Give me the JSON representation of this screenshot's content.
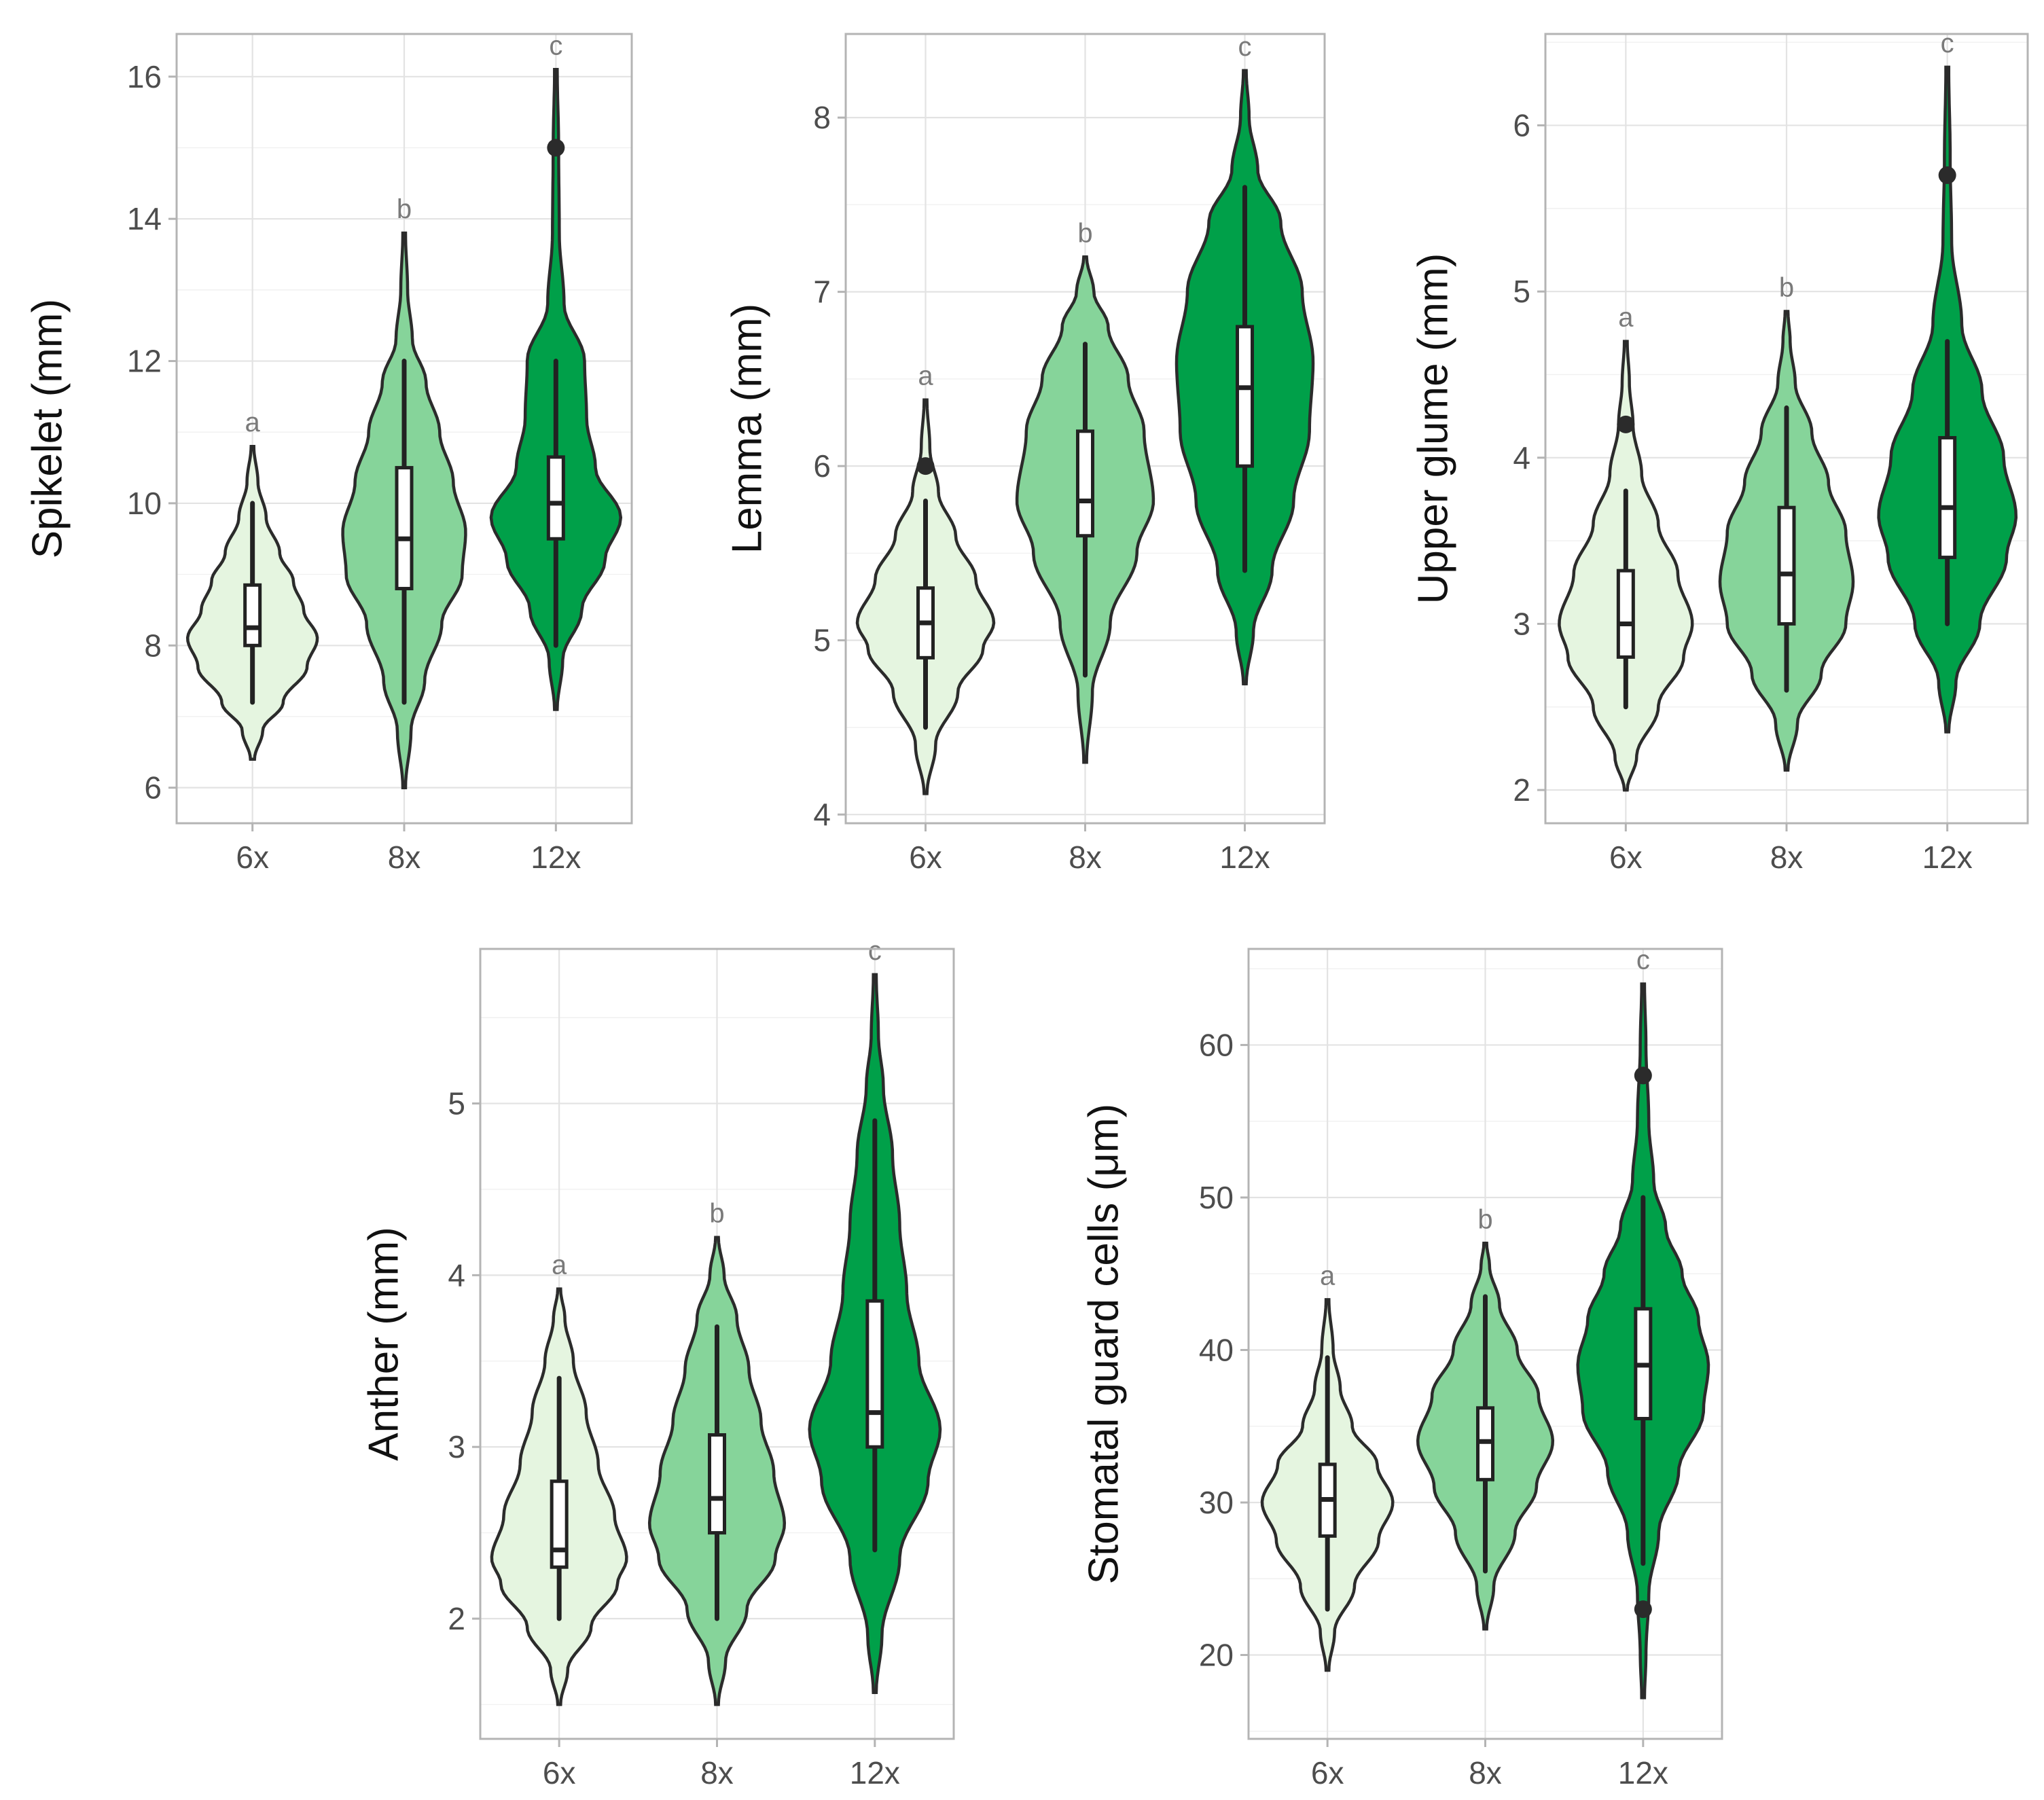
{
  "chart_data": [
    {
      "type": "violin",
      "ylabel": "Spikelet (mm)",
      "categories": [
        "6x",
        "8x",
        "12x"
      ],
      "ylim": [
        5.5,
        16.6
      ],
      "yticks": [
        6,
        8,
        10,
        12,
        14,
        16
      ],
      "series": [
        {
          "name": "6x",
          "color": "#e5f5e0",
          "min": 6.4,
          "max": 10.8,
          "density": [
            [
              6.4,
              0.03
            ],
            [
              6.8,
              0.15
            ],
            [
              7.2,
              0.45
            ],
            [
              7.7,
              0.8
            ],
            [
              8.1,
              0.95
            ],
            [
              8.5,
              0.75
            ],
            [
              8.9,
              0.6
            ],
            [
              9.3,
              0.4
            ],
            [
              9.8,
              0.2
            ],
            [
              10.3,
              0.08
            ],
            [
              10.8,
              0.02
            ]
          ],
          "whisker": [
            7.2,
            10.0
          ],
          "q1": 8.0,
          "median": 8.25,
          "q3": 8.85,
          "outliers": [],
          "sig": "a"
        },
        {
          "name": "8x",
          "color": "#86d49a",
          "min": 6.0,
          "max": 13.8,
          "density": [
            [
              6.0,
              0.02
            ],
            [
              6.8,
              0.1
            ],
            [
              7.5,
              0.3
            ],
            [
              8.3,
              0.55
            ],
            [
              9.0,
              0.85
            ],
            [
              9.6,
              0.9
            ],
            [
              10.3,
              0.72
            ],
            [
              11.0,
              0.52
            ],
            [
              11.7,
              0.32
            ],
            [
              12.3,
              0.12
            ],
            [
              13.0,
              0.05
            ],
            [
              13.8,
              0.02
            ]
          ],
          "whisker": [
            7.2,
            12.0
          ],
          "q1": 8.8,
          "median": 9.5,
          "q3": 10.5,
          "outliers": [],
          "sig": "b"
        },
        {
          "name": "12x",
          "color": "#00a049",
          "min": 7.1,
          "max": 16.1,
          "density": [
            [
              7.1,
              0.02
            ],
            [
              7.8,
              0.1
            ],
            [
              8.5,
              0.38
            ],
            [
              9.2,
              0.72
            ],
            [
              9.8,
              0.95
            ],
            [
              10.5,
              0.58
            ],
            [
              11.2,
              0.45
            ],
            [
              12.0,
              0.42
            ],
            [
              12.8,
              0.12
            ],
            [
              13.8,
              0.05
            ],
            [
              15.0,
              0.04
            ],
            [
              16.1,
              0.02
            ]
          ],
          "whisker": [
            8.0,
            12.0
          ],
          "q1": 9.5,
          "median": 10.0,
          "q3": 10.65,
          "outliers": [
            15.0
          ],
          "sig": "c"
        }
      ]
    },
    {
      "type": "violin",
      "ylabel": "Lemma (mm)",
      "categories": [
        "6x",
        "8x",
        "12x"
      ],
      "ylim": [
        3.95,
        8.48
      ],
      "yticks": [
        4,
        5,
        6,
        7,
        8
      ],
      "series": [
        {
          "name": "6x",
          "color": "#e5f5e0",
          "min": 4.12,
          "max": 6.38,
          "density": [
            [
              4.12,
              0.02
            ],
            [
              4.4,
              0.14
            ],
            [
              4.7,
              0.45
            ],
            [
              4.95,
              0.8
            ],
            [
              5.1,
              0.95
            ],
            [
              5.35,
              0.7
            ],
            [
              5.6,
              0.42
            ],
            [
              5.85,
              0.18
            ],
            [
              6.1,
              0.06
            ],
            [
              6.38,
              0.02
            ]
          ],
          "whisker": [
            4.5,
            5.8
          ],
          "q1": 4.9,
          "median": 5.1,
          "q3": 5.3,
          "outliers": [
            6.0
          ],
          "sig": "a"
        },
        {
          "name": "8x",
          "color": "#86d49a",
          "min": 4.3,
          "max": 7.2,
          "density": [
            [
              4.3,
              0.02
            ],
            [
              4.7,
              0.1
            ],
            [
              5.1,
              0.35
            ],
            [
              5.5,
              0.72
            ],
            [
              5.8,
              0.95
            ],
            [
              6.2,
              0.82
            ],
            [
              6.5,
              0.6
            ],
            [
              6.8,
              0.32
            ],
            [
              7.0,
              0.12
            ],
            [
              7.2,
              0.02
            ]
          ],
          "whisker": [
            4.8,
            6.7
          ],
          "q1": 5.6,
          "median": 5.8,
          "q3": 6.2,
          "outliers": [],
          "sig": "b"
        },
        {
          "name": "12x",
          "color": "#00a049",
          "min": 4.75,
          "max": 8.27,
          "density": [
            [
              4.75,
              0.02
            ],
            [
              5.05,
              0.12
            ],
            [
              5.4,
              0.38
            ],
            [
              5.8,
              0.68
            ],
            [
              6.2,
              0.9
            ],
            [
              6.6,
              0.95
            ],
            [
              7.0,
              0.8
            ],
            [
              7.4,
              0.5
            ],
            [
              7.7,
              0.18
            ],
            [
              8.0,
              0.06
            ],
            [
              8.27,
              0.02
            ]
          ],
          "whisker": [
            5.4,
            7.6
          ],
          "q1": 6.0,
          "median": 6.45,
          "q3": 6.8,
          "outliers": [],
          "sig": "c"
        }
      ]
    },
    {
      "type": "violin",
      "ylabel": "Upper glume (mm)",
      "categories": [
        "6x",
        "8x",
        "12x"
      ],
      "ylim": [
        1.8,
        6.55
      ],
      "yticks": [
        2,
        3,
        4,
        5,
        6
      ],
      "series": [
        {
          "name": "6x",
          "color": "#e5f5e0",
          "min": 2.0,
          "max": 4.7,
          "density": [
            [
              2.0,
              0.02
            ],
            [
              2.2,
              0.15
            ],
            [
              2.5,
              0.45
            ],
            [
              2.8,
              0.8
            ],
            [
              3.0,
              0.92
            ],
            [
              3.3,
              0.72
            ],
            [
              3.6,
              0.45
            ],
            [
              3.9,
              0.22
            ],
            [
              4.2,
              0.1
            ],
            [
              4.45,
              0.05
            ],
            [
              4.7,
              0.02
            ]
          ],
          "whisker": [
            2.5,
            3.8
          ],
          "q1": 2.8,
          "median": 3.0,
          "q3": 3.32,
          "outliers": [
            4.2
          ],
          "sig": "a"
        },
        {
          "name": "8x",
          "color": "#86d49a",
          "min": 2.12,
          "max": 4.88,
          "density": [
            [
              2.12,
              0.02
            ],
            [
              2.4,
              0.15
            ],
            [
              2.7,
              0.48
            ],
            [
              3.0,
              0.82
            ],
            [
              3.25,
              0.92
            ],
            [
              3.55,
              0.82
            ],
            [
              3.85,
              0.58
            ],
            [
              4.15,
              0.35
            ],
            [
              4.45,
              0.12
            ],
            [
              4.7,
              0.05
            ],
            [
              4.88,
              0.02
            ]
          ],
          "whisker": [
            2.6,
            4.3
          ],
          "q1": 3.0,
          "median": 3.3,
          "q3": 3.7,
          "outliers": [],
          "sig": "b"
        },
        {
          "name": "12x",
          "color": "#00a049",
          "min": 2.35,
          "max": 6.35,
          "density": [
            [
              2.35,
              0.02
            ],
            [
              2.65,
              0.12
            ],
            [
              3.0,
              0.45
            ],
            [
              3.4,
              0.82
            ],
            [
              3.65,
              0.95
            ],
            [
              4.0,
              0.78
            ],
            [
              4.4,
              0.48
            ],
            [
              4.8,
              0.2
            ],
            [
              5.3,
              0.06
            ],
            [
              5.8,
              0.04
            ],
            [
              6.35,
              0.02
            ]
          ],
          "whisker": [
            3.0,
            4.7
          ],
          "q1": 3.4,
          "median": 3.7,
          "q3": 4.12,
          "outliers": [
            5.7
          ],
          "sig": "c"
        }
      ]
    },
    {
      "type": "violin",
      "ylabel": "Anther (mm)",
      "categories": [
        "6x",
        "8x",
        "12x"
      ],
      "ylim": [
        1.3,
        5.9
      ],
      "yticks": [
        2,
        3,
        4,
        5
      ],
      "series": [
        {
          "name": "6x",
          "color": "#e5f5e0",
          "min": 1.5,
          "max": 3.92,
          "density": [
            [
              1.5,
              0.02
            ],
            [
              1.7,
              0.12
            ],
            [
              1.95,
              0.45
            ],
            [
              2.2,
              0.82
            ],
            [
              2.35,
              0.95
            ],
            [
              2.6,
              0.78
            ],
            [
              2.9,
              0.55
            ],
            [
              3.2,
              0.38
            ],
            [
              3.5,
              0.2
            ],
            [
              3.75,
              0.08
            ],
            [
              3.92,
              0.02
            ]
          ],
          "whisker": [
            2.0,
            3.4
          ],
          "q1": 2.3,
          "median": 2.4,
          "q3": 2.8,
          "outliers": [],
          "sig": "a"
        },
        {
          "name": "8x",
          "color": "#86d49a",
          "min": 1.5,
          "max": 4.22,
          "density": [
            [
              1.5,
              0.02
            ],
            [
              1.75,
              0.12
            ],
            [
              2.05,
              0.42
            ],
            [
              2.35,
              0.82
            ],
            [
              2.55,
              0.95
            ],
            [
              2.85,
              0.8
            ],
            [
              3.15,
              0.62
            ],
            [
              3.45,
              0.45
            ],
            [
              3.75,
              0.28
            ],
            [
              4.0,
              0.1
            ],
            [
              4.22,
              0.02
            ]
          ],
          "whisker": [
            2.0,
            3.7
          ],
          "q1": 2.5,
          "median": 2.7,
          "q3": 3.07,
          "outliers": [],
          "sig": "b"
        },
        {
          "name": "12x",
          "color": "#00a049",
          "min": 1.57,
          "max": 5.75,
          "density": [
            [
              1.57,
              0.02
            ],
            [
              1.9,
              0.1
            ],
            [
              2.35,
              0.35
            ],
            [
              2.8,
              0.75
            ],
            [
              3.1,
              0.92
            ],
            [
              3.5,
              0.62
            ],
            [
              3.9,
              0.45
            ],
            [
              4.3,
              0.35
            ],
            [
              4.7,
              0.25
            ],
            [
              5.1,
              0.12
            ],
            [
              5.4,
              0.05
            ],
            [
              5.75,
              0.02
            ]
          ],
          "whisker": [
            2.4,
            4.9
          ],
          "q1": 3.0,
          "median": 3.2,
          "q3": 3.85,
          "outliers": [],
          "sig": "c"
        }
      ]
    },
    {
      "type": "violin",
      "ylabel": "Stomatal guard cells (μm)",
      "categories": [
        "6x",
        "8x",
        "12x"
      ],
      "ylim": [
        14.5,
        66.3
      ],
      "yticks": [
        20,
        30,
        40,
        50,
        60
      ],
      "series": [
        {
          "name": "6x",
          "color": "#e5f5e0",
          "min": 19.0,
          "max": 43.3,
          "density": [
            [
              19.0,
              0.02
            ],
            [
              21.5,
              0.1
            ],
            [
              24.5,
              0.38
            ],
            [
              27.5,
              0.72
            ],
            [
              30.0,
              0.92
            ],
            [
              32.5,
              0.7
            ],
            [
              35.0,
              0.35
            ],
            [
              37.5,
              0.18
            ],
            [
              40.0,
              0.08
            ],
            [
              43.3,
              0.02
            ]
          ],
          "whisker": [
            23.0,
            39.5
          ],
          "q1": 27.8,
          "median": 30.2,
          "q3": 32.5,
          "outliers": [],
          "sig": "a"
        },
        {
          "name": "8x",
          "color": "#86d49a",
          "min": 21.7,
          "max": 47.0,
          "density": [
            [
              21.7,
              0.02
            ],
            [
              24.5,
              0.12
            ],
            [
              28.0,
              0.42
            ],
            [
              31.0,
              0.72
            ],
            [
              34.0,
              0.95
            ],
            [
              37.0,
              0.75
            ],
            [
              40.0,
              0.45
            ],
            [
              43.0,
              0.2
            ],
            [
              45.5,
              0.06
            ],
            [
              47.0,
              0.02
            ]
          ],
          "whisker": [
            25.5,
            43.5
          ],
          "q1": 31.5,
          "median": 34.0,
          "q3": 36.2,
          "outliers": [],
          "sig": "b"
        },
        {
          "name": "12x",
          "color": "#00a049",
          "min": 17.2,
          "max": 64.0,
          "density": [
            [
              17.2,
              0.02
            ],
            [
              20.0,
              0.04
            ],
            [
              24.0,
              0.08
            ],
            [
              28.0,
              0.22
            ],
            [
              32.0,
              0.5
            ],
            [
              36.0,
              0.85
            ],
            [
              39.0,
              0.92
            ],
            [
              42.0,
              0.78
            ],
            [
              45.0,
              0.55
            ],
            [
              48.0,
              0.32
            ],
            [
              51.0,
              0.15
            ],
            [
              55.0,
              0.08
            ],
            [
              60.0,
              0.04
            ],
            [
              64.0,
              0.02
            ]
          ],
          "whisker": [
            26.0,
            50.0
          ],
          "q1": 35.5,
          "median": 39.0,
          "q3": 42.7,
          "outliers": [
            58.0,
            23.0
          ],
          "sig": "c"
        }
      ]
    }
  ]
}
